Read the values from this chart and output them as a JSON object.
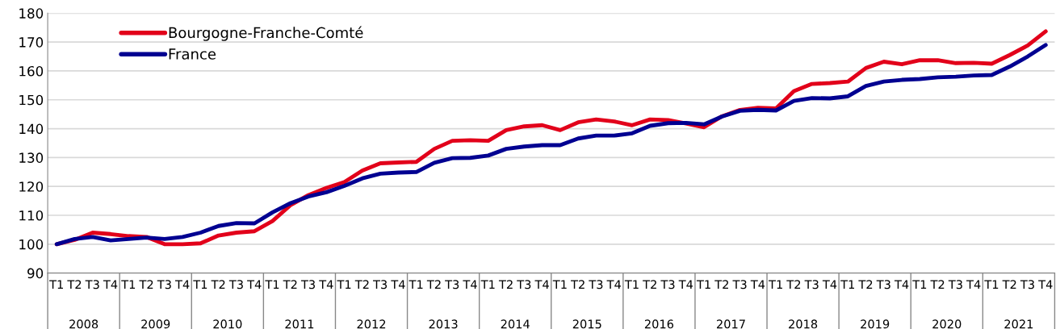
{
  "chart_data": {
    "type": "line",
    "categories": [
      "T1",
      "T2",
      "T3",
      "T4",
      "T1",
      "T2",
      "T3",
      "T4",
      "T1",
      "T2",
      "T3",
      "T4",
      "T1",
      "T2",
      "T3",
      "T4",
      "T1",
      "T2",
      "T3",
      "T4",
      "T1",
      "T2",
      "T3",
      "T4",
      "T1",
      "T2",
      "T3",
      "T4",
      "T1",
      "T2",
      "T3",
      "T4",
      "T1",
      "T2",
      "T3",
      "T4",
      "T1",
      "T2",
      "T3",
      "T4",
      "T1",
      "T2",
      "T3",
      "T4",
      "T1",
      "T2",
      "T3",
      "T4",
      "T1",
      "T2",
      "T3",
      "T4",
      "T1",
      "T2",
      "T3",
      "T4"
    ],
    "annotations": [
      "2008",
      "2009",
      "2010",
      "2011",
      "2012",
      "2013",
      "2014",
      "2015",
      "2016",
      "2017",
      "2018",
      "2019",
      "2020",
      "2021"
    ],
    "series": [
      {
        "name": "Bourgogne-Franche-Comté",
        "color": "#e2001a",
        "values": [
          100,
          101.5,
          104,
          103.5,
          102.8,
          102.5,
          100,
          100,
          100.3,
          103,
          104,
          104.5,
          108,
          113.5,
          117,
          119.5,
          121.5,
          125.5,
          128,
          128.3,
          128.5,
          133,
          135.8,
          136,
          135.8,
          139.5,
          140.8,
          141.2,
          139.5,
          142.2,
          143.2,
          142.5,
          141.2,
          143.2,
          143,
          141.8,
          140.5,
          144.3,
          146.5,
          147.2,
          147,
          153,
          155.5,
          155.8,
          156.3,
          161,
          163.2,
          162.3,
          163.7,
          163.7,
          162.7,
          162.8,
          162.5,
          165.5,
          168.8,
          173.7
        ]
      },
      {
        "name": "France",
        "color": "#000091",
        "values": [
          100,
          101.8,
          102.5,
          101.3,
          101.8,
          102.3,
          101.8,
          102.5,
          104,
          106.3,
          107.3,
          107.2,
          111,
          114.2,
          116.5,
          118,
          120.2,
          122.8,
          124.4,
          124.8,
          125,
          128.2,
          129.8,
          129.9,
          130.7,
          133,
          133.8,
          134.3,
          134.3,
          136.6,
          137.6,
          137.6,
          138.4,
          141,
          141.9,
          142,
          141.5,
          144.2,
          146.2,
          146.5,
          146.3,
          149.6,
          150.6,
          150.5,
          151.2,
          154.8,
          156.3,
          156.9,
          157.2,
          157.8,
          158,
          158.4,
          158.6,
          161.5,
          165,
          169
        ]
      }
    ],
    "ylim": [
      90,
      180
    ],
    "yticks": [
      90,
      100,
      110,
      120,
      130,
      140,
      150,
      160,
      170,
      180
    ],
    "grid": "y",
    "legend": "top left",
    "marker": "none",
    "line_style": "solid"
  }
}
